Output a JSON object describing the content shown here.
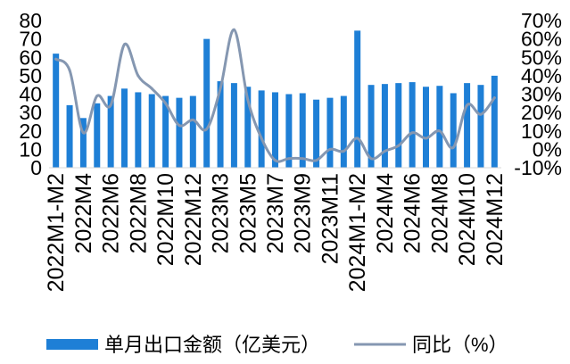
{
  "chart_data": {
    "type": "bar",
    "categories": [
      "2022M1-M2",
      "",
      "2022M4",
      "",
      "2022M6",
      "",
      "2022M8",
      "",
      "2022M10",
      "",
      "2022M12",
      "",
      "2023M3",
      "",
      "2023M5",
      "",
      "2023M7",
      "",
      "2023M9",
      "",
      "2023M11",
      "",
      "2024M1-M2",
      "",
      "2024M4",
      "",
      "2024M6",
      "",
      "2024M8",
      "",
      "2024M10",
      "",
      "2024M12"
    ],
    "series": [
      {
        "name": "单月出口金额（亿美元）",
        "type": "bar",
        "axis": "left",
        "color": "#1e7fd6",
        "values": [
          62,
          34,
          27,
          35,
          39,
          43,
          41,
          40,
          39,
          38,
          39,
          70,
          47,
          46,
          44,
          42,
          41,
          40,
          40.5,
          37,
          38,
          39,
          74.5,
          45,
          45.5,
          46,
          46.5,
          44,
          44.5,
          40.5,
          46,
          45,
          50
        ]
      },
      {
        "name": "同比（%）",
        "type": "line",
        "axis": "right",
        "color": "#8597b1",
        "values": [
          49,
          43,
          9,
          29,
          24,
          57,
          40,
          33,
          25,
          13,
          16,
          11,
          33,
          65,
          27,
          6,
          -6,
          -5,
          -5,
          -6,
          0,
          -1,
          6,
          -5,
          -1,
          2,
          9,
          6,
          10,
          1,
          24,
          19,
          28
        ]
      }
    ],
    "y_left": {
      "range": [
        0,
        80
      ],
      "ticks": [
        0,
        10,
        20,
        30,
        40,
        50,
        60,
        70,
        80
      ],
      "tick_labels": [
        "0",
        "10",
        "20",
        "30",
        "40",
        "50",
        "60",
        "70",
        "80"
      ]
    },
    "y_right": {
      "range": [
        -10,
        70
      ],
      "ticks": [
        -10,
        0,
        10,
        20,
        30,
        40,
        50,
        60,
        70
      ],
      "tick_labels": [
        "-10%",
        "0%",
        "10%",
        "20%",
        "30%",
        "40%",
        "50%",
        "60%",
        "70%"
      ]
    },
    "grid": false,
    "legend": "bottom"
  }
}
